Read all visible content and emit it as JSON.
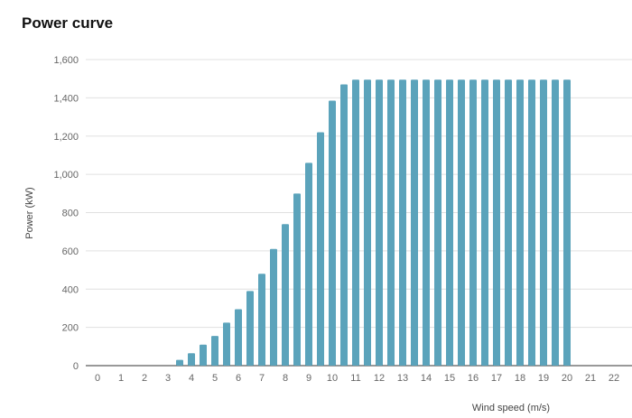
{
  "chart_data": {
    "type": "bar",
    "title": "Power curve",
    "xlabel": "Wind speed (m/s)",
    "ylabel": "Power (kW)",
    "xlim": [
      -0.5,
      22.5
    ],
    "ylim": [
      0,
      1600
    ],
    "grid": true,
    "x_ticks": [
      "0",
      "1",
      "2",
      "3",
      "4",
      "5",
      "6",
      "7",
      "8",
      "9",
      "10",
      "11",
      "12",
      "13",
      "14",
      "15",
      "16",
      "17",
      "18",
      "19",
      "20",
      "21",
      "22"
    ],
    "y_ticks": [
      "0",
      "200",
      "400",
      "600",
      "800",
      "1,000",
      "1,200",
      "1,400",
      "1,600"
    ],
    "color": "#5ba3bb",
    "x": [
      3.5,
      4,
      4.5,
      5,
      5.5,
      6,
      6.5,
      7,
      7.5,
      8,
      8.5,
      9,
      9.5,
      10,
      10.5,
      11,
      11.5,
      12,
      12.5,
      13,
      13.5,
      14,
      14.5,
      15,
      15.5,
      16,
      16.5,
      17,
      17.5,
      18,
      18.5,
      19,
      19.5,
      20
    ],
    "values": [
      30,
      65,
      110,
      155,
      225,
      295,
      390,
      480,
      610,
      740,
      900,
      1060,
      1220,
      1385,
      1470,
      1495,
      1495,
      1495,
      1495,
      1495,
      1495,
      1495,
      1495,
      1495,
      1495,
      1495,
      1495,
      1495,
      1495,
      1495,
      1495,
      1495,
      1495,
      1495
    ]
  }
}
